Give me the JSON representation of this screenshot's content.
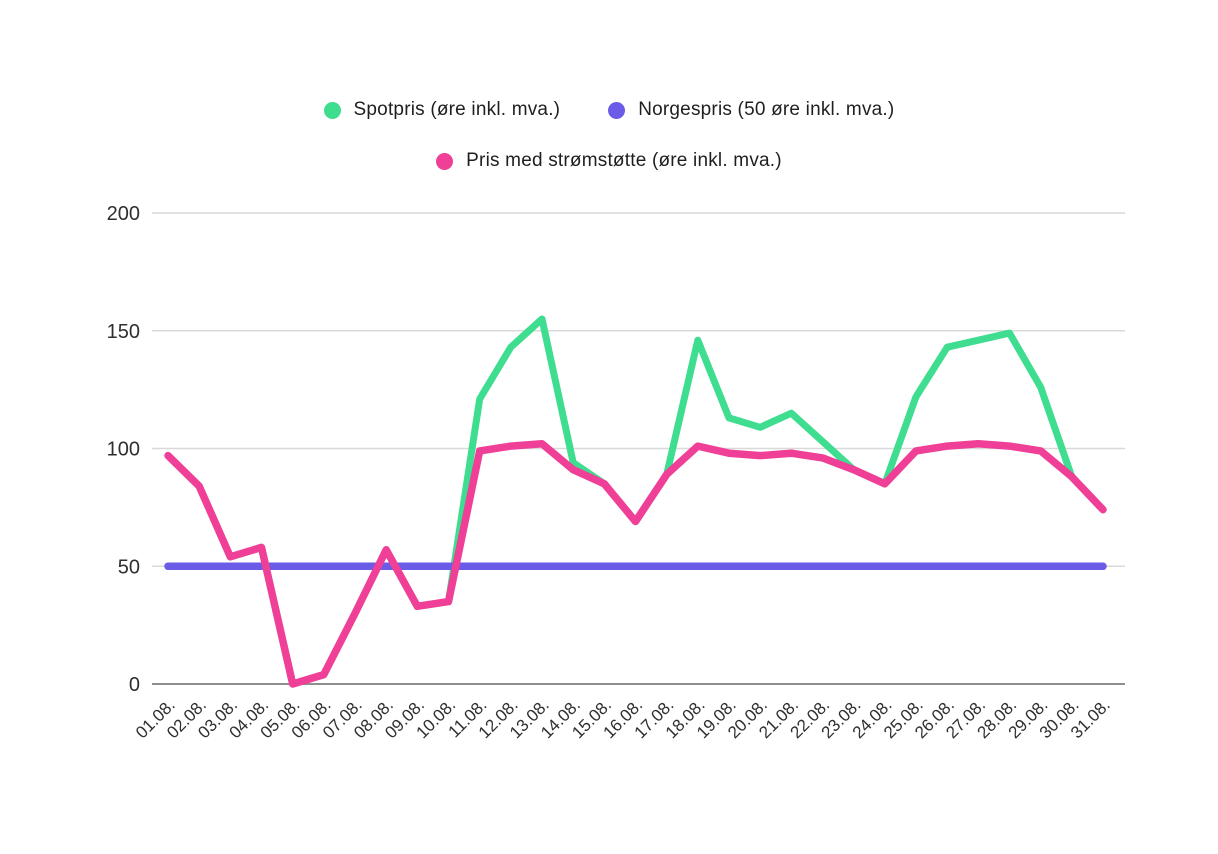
{
  "chart_data": {
    "type": "line",
    "title": "",
    "xlabel": "",
    "ylabel": "",
    "x": [
      "01.08.",
      "02.08.",
      "03.08.",
      "04.08.",
      "05.08.",
      "06.08.",
      "07.08.",
      "08.08.",
      "09.08.",
      "10.08.",
      "11.08.",
      "12.08.",
      "13.08.",
      "14.08.",
      "15.08.",
      "16.08.",
      "17.08.",
      "18.08.",
      "19.08.",
      "20.08.",
      "21.08.",
      "22.08.",
      "23.08.",
      "24.08.",
      "25.08.",
      "26.08.",
      "27.08.",
      "28.08.",
      "29.08.",
      "30.08.",
      "31.08."
    ],
    "series": [
      {
        "name": "Spotpris (øre inkl. mva.)",
        "color": "#3EDD8F",
        "values": [
          97,
          84,
          54,
          58,
          0,
          4,
          30,
          57,
          33,
          35,
          121,
          143,
          155,
          94,
          85,
          69,
          89,
          146,
          113,
          109,
          115,
          103,
          91,
          85,
          122,
          143,
          146,
          149,
          126,
          88,
          74
        ]
      },
      {
        "name": "Norgespris (50 øre inkl. mva.)",
        "color": "#6B5CE7",
        "values": [
          50,
          50,
          50,
          50,
          50,
          50,
          50,
          50,
          50,
          50,
          50,
          50,
          50,
          50,
          50,
          50,
          50,
          50,
          50,
          50,
          50,
          50,
          50,
          50,
          50,
          50,
          50,
          50,
          50,
          50,
          50
        ]
      },
      {
        "name": "Pris med strømstøtte (øre inkl. mva.)",
        "color": "#EF3F97",
        "values": [
          97,
          84,
          54,
          58,
          0,
          4,
          30,
          57,
          33,
          35,
          99,
          101,
          102,
          91,
          85,
          69,
          89,
          101,
          98,
          97,
          98,
          96,
          91,
          85,
          99,
          101,
          102,
          101,
          99,
          88,
          74
        ]
      }
    ],
    "ylim": [
      0,
      200
    ],
    "yticks": [
      0,
      50,
      100,
      150,
      200
    ],
    "grid": true,
    "legend_position": "top"
  }
}
